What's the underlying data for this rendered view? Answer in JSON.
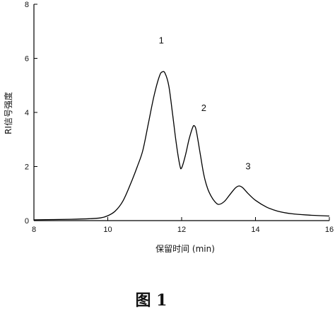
{
  "chart_data": {
    "type": "line",
    "xlabel": "保留时间 (min)",
    "ylabel": "RI信号强度",
    "xlim": [
      8,
      16
    ],
    "ylim": [
      0,
      8
    ],
    "x_ticks": [
      "8",
      "10",
      "12",
      "14",
      "16"
    ],
    "y_ticks": [
      "0",
      "2",
      "4",
      "6",
      "8"
    ],
    "grid": false,
    "series": [
      {
        "x": [
          8.0,
          8.5,
          9.0,
          9.5,
          9.8,
          10.0,
          10.2,
          10.4,
          10.6,
          10.8,
          10.95,
          11.1,
          11.25,
          11.4,
          11.48,
          11.55,
          11.65,
          11.75,
          11.85,
          11.95,
          12.0,
          12.1,
          12.2,
          12.3,
          12.35,
          12.4,
          12.5,
          12.6,
          12.7,
          12.8,
          12.9,
          13.0,
          13.15,
          13.3,
          13.45,
          13.55,
          13.65,
          13.8,
          14.0,
          14.3,
          14.6,
          15.0,
          15.5,
          16.0
        ],
        "y": [
          0.03,
          0.04,
          0.05,
          0.07,
          0.1,
          0.18,
          0.35,
          0.7,
          1.3,
          2.0,
          2.6,
          3.6,
          4.6,
          5.35,
          5.5,
          5.45,
          5.0,
          4.0,
          2.9,
          2.05,
          1.95,
          2.4,
          3.0,
          3.45,
          3.5,
          3.3,
          2.5,
          1.7,
          1.2,
          0.9,
          0.7,
          0.6,
          0.7,
          0.95,
          1.2,
          1.28,
          1.22,
          1.0,
          0.75,
          0.5,
          0.35,
          0.25,
          0.2,
          0.17
        ]
      }
    ],
    "annotations": [
      {
        "text": "1",
        "x": 11.45,
        "y": 6.55
      },
      {
        "text": "2",
        "x": 12.6,
        "y": 4.05
      },
      {
        "text": "3",
        "x": 13.8,
        "y": 1.9
      }
    ]
  },
  "caption": "图 1"
}
